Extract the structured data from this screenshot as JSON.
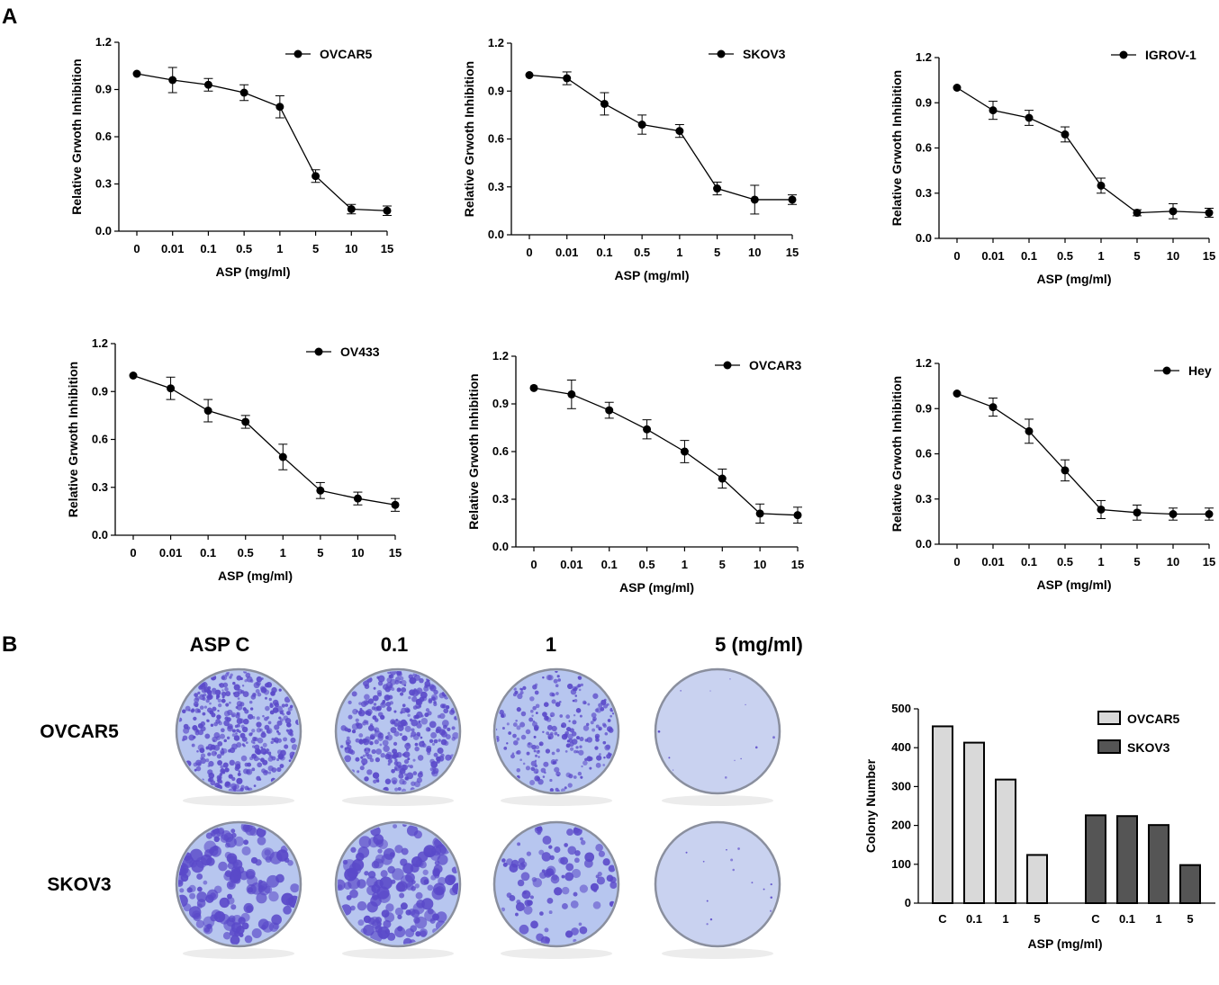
{
  "panels": {
    "a": "A",
    "b": "B"
  },
  "chart_data": [
    {
      "type": "line",
      "name": "OVCAR5",
      "categories": [
        "0",
        "0.01",
        "0.1",
        "0.5",
        "1",
        "5",
        "10",
        "15"
      ],
      "series": [
        {
          "name": "OVCAR5",
          "values": [
            1.0,
            0.96,
            0.93,
            0.88,
            0.79,
            0.35,
            0.14,
            0.13
          ],
          "errors": [
            0.0,
            0.08,
            0.04,
            0.05,
            0.07,
            0.04,
            0.03,
            0.03
          ]
        }
      ],
      "xlabel": "ASP (mg/ml)",
      "ylabel": "Relative Grwoth Inhibition",
      "ylim": [
        0,
        1.2
      ],
      "yticks": [
        "0.0",
        "0.3",
        "0.6",
        "0.9",
        "1.2"
      ],
      "legend": "top-right"
    },
    {
      "type": "line",
      "name": "SKOV3",
      "categories": [
        "0",
        "0.01",
        "0.1",
        "0.5",
        "1",
        "5",
        "10",
        "15"
      ],
      "series": [
        {
          "name": "SKOV3",
          "values": [
            1.0,
            0.98,
            0.82,
            0.69,
            0.65,
            0.29,
            0.22,
            0.22
          ],
          "errors": [
            0.0,
            0.04,
            0.07,
            0.06,
            0.04,
            0.04,
            0.09,
            0.03
          ]
        }
      ],
      "xlabel": "ASP (mg/ml)",
      "ylabel": "Relative Grwoth Inhibition",
      "ylim": [
        0,
        1.2
      ],
      "yticks": [
        "0.0",
        "0.3",
        "0.6",
        "0.9",
        "1.2"
      ],
      "legend": "top-right"
    },
    {
      "type": "line",
      "name": "IGROV-1",
      "categories": [
        "0",
        "0.01",
        "0.1",
        "0.5",
        "1",
        "5",
        "10",
        "15"
      ],
      "series": [
        {
          "name": "IGROV-1",
          "values": [
            1.0,
            0.85,
            0.8,
            0.69,
            0.35,
            0.17,
            0.18,
            0.17
          ],
          "errors": [
            0.0,
            0.06,
            0.05,
            0.05,
            0.05,
            0.02,
            0.05,
            0.03
          ]
        }
      ],
      "xlabel": "ASP (mg/ml)",
      "ylabel": "Relative Grwoth Inhibition",
      "ylim": [
        0,
        1.2
      ],
      "yticks": [
        "0.0",
        "0.3",
        "0.6",
        "0.9",
        "1.2"
      ],
      "legend": "top-right"
    },
    {
      "type": "line",
      "name": "OV433",
      "categories": [
        "0",
        "0.01",
        "0.1",
        "0.5",
        "1",
        "5",
        "10",
        "15"
      ],
      "series": [
        {
          "name": "OV433",
          "values": [
            1.0,
            0.92,
            0.78,
            0.71,
            0.49,
            0.28,
            0.23,
            0.19
          ],
          "errors": [
            0.0,
            0.07,
            0.07,
            0.04,
            0.08,
            0.05,
            0.04,
            0.04
          ]
        }
      ],
      "xlabel": "ASP (mg/ml)",
      "ylabel": "Relative Grwoth Inhibition",
      "ylim": [
        0,
        1.2
      ],
      "yticks": [
        "0.0",
        "0.3",
        "0.6",
        "0.9",
        "1.2"
      ],
      "legend": "top-right"
    },
    {
      "type": "line",
      "name": "OVCAR3",
      "categories": [
        "0",
        "0.01",
        "0.1",
        "0.5",
        "1",
        "5",
        "10",
        "15"
      ],
      "series": [
        {
          "name": "OVCAR3",
          "values": [
            1.0,
            0.96,
            0.86,
            0.74,
            0.6,
            0.43,
            0.21,
            0.2
          ],
          "errors": [
            0.0,
            0.09,
            0.05,
            0.06,
            0.07,
            0.06,
            0.06,
            0.05
          ]
        }
      ],
      "xlabel": "ASP (mg/ml)",
      "ylabel": "Relative Grwoth Inhibition",
      "ylim": [
        0,
        1.2
      ],
      "yticks": [
        "0.0",
        "0.3",
        "0.6",
        "0.9",
        "1.2"
      ],
      "legend": "top-right"
    },
    {
      "type": "line",
      "name": "Hey",
      "categories": [
        "0",
        "0.01",
        "0.1",
        "0.5",
        "1",
        "5",
        "10",
        "15"
      ],
      "series": [
        {
          "name": "Hey",
          "values": [
            1.0,
            0.91,
            0.75,
            0.49,
            0.23,
            0.21,
            0.2,
            0.2
          ],
          "errors": [
            0.0,
            0.06,
            0.08,
            0.07,
            0.06,
            0.05,
            0.04,
            0.04
          ]
        }
      ],
      "xlabel": "ASP (mg/ml)",
      "ylabel": "Relative Grwoth Inhibition",
      "ylim": [
        0,
        1.2
      ],
      "yticks": [
        "0.0",
        "0.3",
        "0.6",
        "0.9",
        "1.2"
      ],
      "legend": "top-right"
    },
    {
      "type": "bar",
      "name": "colony-number",
      "categories": [
        "C",
        "0.1",
        "1",
        "5"
      ],
      "series": [
        {
          "name": "OVCAR5",
          "values": [
            455,
            413,
            318,
            124
          ],
          "color": "#d9d9d9"
        },
        {
          "name": "SKOV3",
          "values": [
            226,
            224,
            201,
            98
          ],
          "color": "#555555"
        }
      ],
      "xlabel": "ASP (mg/ml)",
      "ylabel": "Colony Number",
      "ylim": [
        0,
        500
      ],
      "yticks": [
        "0",
        "100",
        "200",
        "300",
        "400",
        "500"
      ],
      "legend": "top-right"
    }
  ],
  "colony_panel": {
    "headers": [
      "ASP C",
      "0.1",
      "1",
      "5 (mg/ml)"
    ],
    "rows": [
      "OVCAR5",
      "SKOV3"
    ],
    "colors": {
      "dish_bg": "#b7c6ef",
      "dish_clear": "#c9d2f0",
      "colony": "#5a49c9",
      "rim": "#8a8f9e"
    }
  }
}
